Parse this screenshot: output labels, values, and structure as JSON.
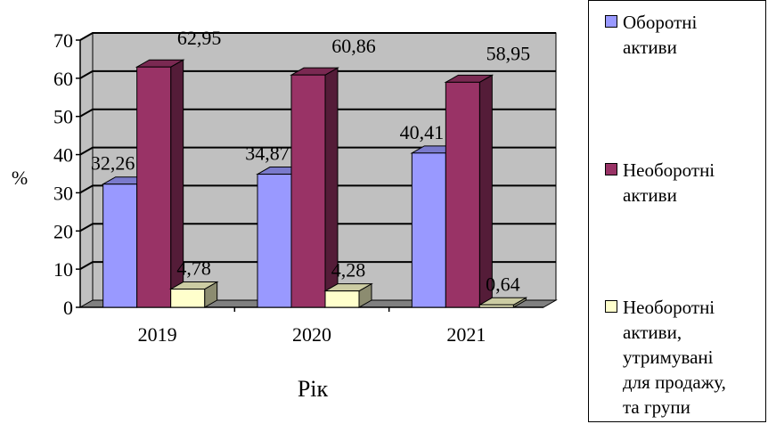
{
  "chart_data": {
    "type": "bar",
    "categories": [
      "2019",
      "2020",
      "2021"
    ],
    "series": [
      {
        "name": "Оборотні\nактиви",
        "values": [
          32.26,
          34.87,
          40.41
        ],
        "data_labels": [
          "32,26",
          "34,87",
          "40,41"
        ],
        "color": "#9999ff"
      },
      {
        "name": "Необоротні\nактиви",
        "values": [
          62.95,
          60.86,
          58.95
        ],
        "data_labels": [
          "62,95",
          "60,86",
          "58,95"
        ],
        "color": "#993366"
      },
      {
        "name": "Необоротні\nактиви,\nутримувані\nдля продажу,\nта групи",
        "values": [
          4.78,
          4.28,
          0.64
        ],
        "data_labels": [
          "4,78",
          "4,28",
          "0,64"
        ],
        "color": "#ffffcc"
      }
    ],
    "y_ticks": [
      "0",
      "10",
      "20",
      "30",
      "40",
      "50",
      "60",
      "70"
    ],
    "ylim": [
      0,
      70
    ],
    "xlabel": "Рік",
    "ylabel": "%",
    "grid": true,
    "legend_position": "right",
    "wall_color": "#c0c0c0",
    "floor_color": "#808080"
  }
}
